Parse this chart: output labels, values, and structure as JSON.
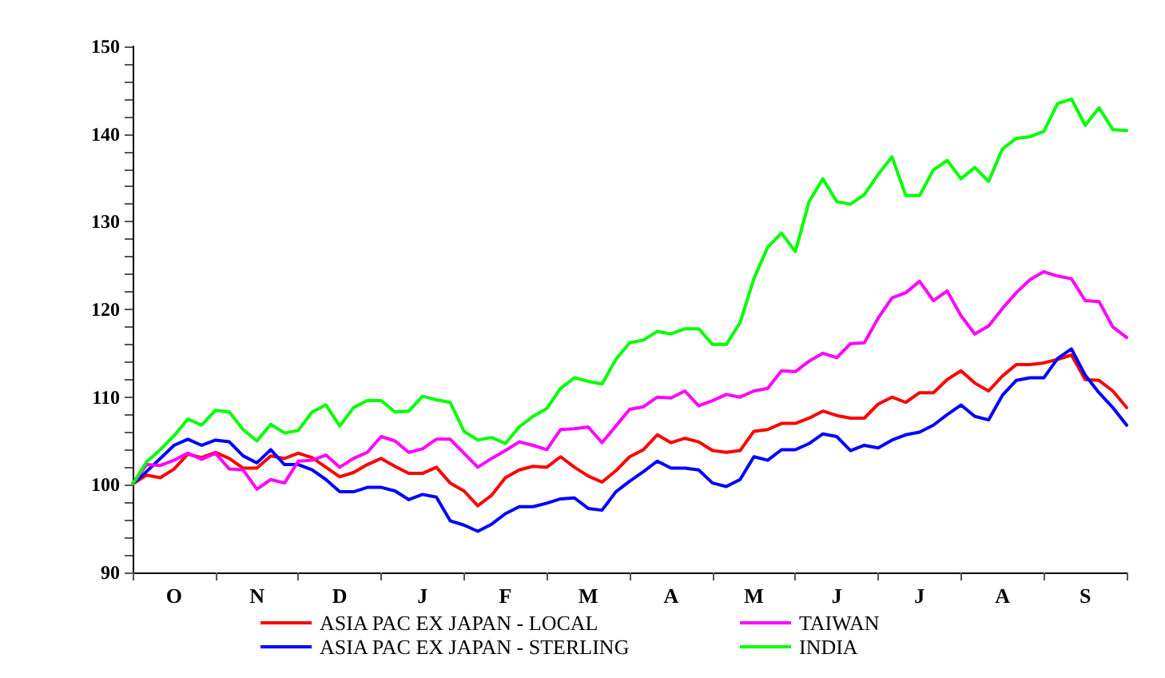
{
  "chart_data": {
    "type": "line",
    "legend": "bottom",
    "grid": false,
    "marker": "none",
    "line_style": "solid",
    "categories": [
      null,
      null,
      null,
      "O",
      null,
      null,
      null,
      null,
      null,
      "N",
      null,
      null,
      null,
      null,
      null,
      "D",
      null,
      null,
      null,
      null,
      null,
      "J",
      null,
      null,
      null,
      null,
      null,
      "F",
      null,
      null,
      null,
      null,
      null,
      "M",
      null,
      null,
      null,
      null,
      null,
      "A",
      null,
      null,
      null,
      null,
      null,
      "M",
      null,
      null,
      null,
      null,
      null,
      "J",
      null,
      null,
      null,
      null,
      null,
      "J",
      null,
      null,
      null,
      null,
      null,
      "A",
      null,
      null,
      null,
      null,
      null,
      "S",
      null,
      null,
      null
    ],
    "ylim": [
      90,
      150
    ],
    "yticks": [
      90,
      {
        "value": 92,
        "label": null
      },
      {
        "value": 94,
        "label": null
      },
      {
        "value": 96,
        "label": null
      },
      {
        "value": 98,
        "label": null
      },
      100,
      {
        "value": 102,
        "label": null
      },
      {
        "value": 104,
        "label": null
      },
      {
        "value": 106,
        "label": null
      },
      {
        "value": 108,
        "label": null
      },
      110,
      {
        "value": 112,
        "label": null
      },
      {
        "value": 114,
        "label": null
      },
      {
        "value": 116,
        "label": null
      },
      {
        "value": 118,
        "label": null
      },
      120,
      {
        "value": 122,
        "label": null
      },
      {
        "value": 124,
        "label": null
      },
      {
        "value": 126,
        "label": null
      },
      {
        "value": 128,
        "label": null
      },
      130,
      {
        "value": 132,
        "label": null
      },
      {
        "value": 134,
        "label": null
      },
      {
        "value": 136,
        "label": null
      },
      {
        "value": 138,
        "label": null
      },
      140,
      {
        "value": 142,
        "label": null
      },
      {
        "value": 144,
        "label": null
      },
      {
        "value": 146,
        "label": null
      },
      {
        "value": 148,
        "label": null
      },
      150
    ],
    "series": [
      {
        "name": "ASIA PAC EX JAPAN - LOCAL",
        "color": "#ff0000",
        "values": [
          100.1,
          101.1,
          100.8,
          101.8,
          103.5,
          103.1,
          103.7,
          103.0,
          101.9,
          101.9,
          103.3,
          103.0,
          103.6,
          103.1,
          102.0,
          100.9,
          101.4,
          102.3,
          103.0,
          102.1,
          101.3,
          101.3,
          102.0,
          100.2,
          99.3,
          97.6,
          98.8,
          100.8,
          101.7,
          102.1,
          102.0,
          103.2,
          102.0,
          101.0,
          100.3,
          101.6,
          103.2,
          104.0,
          105.7,
          104.8,
          105.3,
          104.9,
          103.9,
          103.7,
          103.9,
          106.1,
          106.3,
          107.0,
          107.0,
          107.6,
          108.4,
          107.9,
          107.6,
          107.6,
          109.2,
          110.0,
          109.4,
          110.5,
          110.5,
          112.0,
          113.0,
          111.6,
          110.7,
          112.4,
          113.7,
          113.7,
          113.9,
          114.3,
          114.8,
          112.0,
          111.9,
          110.7,
          108.8
        ]
      },
      {
        "name": "ASIA PAC EX JAPAN - STERLING",
        "color": "#0000ff",
        "values": [
          100.1,
          101.5,
          103.0,
          104.5,
          105.2,
          104.5,
          105.1,
          104.9,
          103.3,
          102.5,
          104.0,
          102.3,
          102.3,
          101.7,
          100.6,
          99.2,
          99.2,
          99.7,
          99.7,
          99.3,
          98.3,
          98.9,
          98.6,
          95.9,
          95.4,
          94.7,
          95.5,
          96.7,
          97.5,
          97.5,
          97.9,
          98.4,
          98.5,
          97.3,
          97.1,
          99.2,
          100.4,
          101.5,
          102.7,
          101.9,
          101.9,
          101.7,
          100.2,
          99.8,
          100.6,
          103.2,
          102.8,
          104.0,
          104.0,
          104.7,
          105.8,
          105.5,
          103.9,
          104.5,
          104.2,
          105.1,
          105.7,
          106.0,
          106.8,
          108.0,
          109.1,
          107.8,
          107.4,
          110.2,
          111.9,
          112.2,
          112.2,
          114.4,
          115.5,
          112.5,
          110.5,
          108.8,
          106.8
        ]
      },
      {
        "name": "TAIWAN",
        "color": "#ff00ff",
        "values": [
          100.1,
          102.3,
          102.2,
          102.8,
          103.6,
          102.9,
          103.6,
          101.8,
          101.7,
          99.5,
          100.6,
          100.2,
          102.7,
          102.8,
          103.4,
          102.0,
          103.0,
          103.7,
          105.5,
          105.0,
          103.7,
          104.1,
          105.2,
          105.2,
          103.6,
          102.0,
          103.0,
          103.9,
          104.9,
          104.5,
          104.0,
          106.3,
          106.4,
          106.6,
          104.8,
          106.7,
          108.6,
          108.9,
          110.0,
          109.9,
          110.7,
          109.0,
          109.6,
          110.3,
          110.0,
          110.7,
          111.0,
          113.0,
          112.9,
          114.1,
          115.0,
          114.5,
          116.1,
          116.2,
          119.0,
          121.3,
          121.9,
          123.2,
          121.0,
          122.1,
          119.3,
          117.2,
          118.1,
          120.1,
          121.9,
          123.4,
          124.3,
          123.8,
          123.5,
          121.0,
          120.9,
          118.0,
          116.8
        ]
      },
      {
        "name": "INDIA",
        "color": "#00ff00",
        "values": [
          100.1,
          102.6,
          104.0,
          105.6,
          107.5,
          106.8,
          108.5,
          108.3,
          106.3,
          105.0,
          106.9,
          105.9,
          106.2,
          108.3,
          109.1,
          106.7,
          108.8,
          109.6,
          109.6,
          108.3,
          108.4,
          110.1,
          109.7,
          109.4,
          106.1,
          105.1,
          105.4,
          104.7,
          106.6,
          107.8,
          108.7,
          111.0,
          112.2,
          111.8,
          111.5,
          114.3,
          116.2,
          116.5,
          117.5,
          117.2,
          117.8,
          117.8,
          116.0,
          116.0,
          118.5,
          123.5,
          127.1,
          128.7,
          126.6,
          132.3,
          134.9,
          132.3,
          132.0,
          133.1,
          135.4,
          137.4,
          133.0,
          133.0,
          135.9,
          137.0,
          134.9,
          136.2,
          134.6,
          138.3,
          139.5,
          139.7,
          140.3,
          143.5,
          144.0,
          141.0,
          143.0,
          140.5,
          140.4
        ]
      }
    ]
  }
}
